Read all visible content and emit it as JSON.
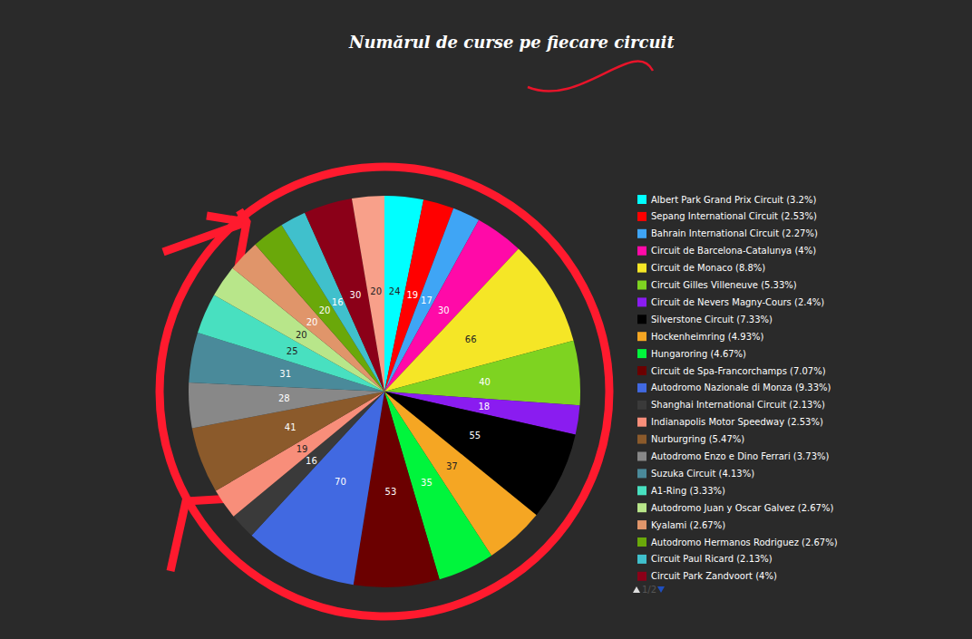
{
  "chart_data": {
    "type": "pie",
    "title": "Numărul de curse pe fiecare circuit",
    "categories": [
      "Albert Park Grand Prix Circuit (3.2%)",
      "Sepang International Circuit (2.53%)",
      "Bahrain International Circuit (2.27%)",
      "Circuit de Barcelona-Catalunya (4%)",
      "Circuit de Monaco (8.8%)",
      "Circuit Gilles Villeneuve (5.33%)",
      "Circuit de Nevers Magny-Cours (2.4%)",
      "Silverstone Circuit (7.33%)",
      "Hockenheimring (4.93%)",
      "Hungaroring (4.67%)",
      "Circuit de Spa-Francorchamps (7.07%)",
      "Autodromo Nazionale di Monza (9.33%)",
      "Shanghai International Circuit (2.13%)",
      "Indianapolis Motor Speedway (2.53%)",
      "Nurburgring (5.47%)",
      "Autodromo Enzo e Dino Ferrari (3.73%)",
      "Suzuka Circuit (4.13%)",
      "A1-Ring (3.33%)",
      "Autodromo Juan y Oscar Galvez (2.67%)",
      "Kyalami (2.67%)",
      "Autodromo Hermanos Rodriguez (2.67%)",
      "Circuit Paul Ricard (2.13%)",
      "Circuit Park Zandvoort (4%)",
      null
    ],
    "values": [
      24,
      19,
      17,
      30,
      66,
      40,
      18,
      55,
      37,
      35,
      53,
      70,
      16,
      19,
      41,
      28,
      31,
      25,
      20,
      20,
      20,
      16,
      30,
      20
    ],
    "colors": [
      "#00ffff",
      "#ff0000",
      "#3fa5f5",
      "#ff0aa8",
      "#f5e626",
      "#7ed321",
      "#8a1cf0",
      "#000000",
      "#f5a623",
      "#00f53c",
      "#6b0000",
      "#4169e1",
      "#3a3a3a",
      "#f88e7a",
      "#8b5a2b",
      "#888888",
      "#4a8a9a",
      "#48e0c0",
      "#b8e68a",
      "#e0956a",
      "#6aa80a",
      "#40c0cc",
      "#8b0018",
      "#f8a08a"
    ],
    "data_labels": true,
    "legend": "right",
    "annotations": [
      "1/2"
    ]
  }
}
